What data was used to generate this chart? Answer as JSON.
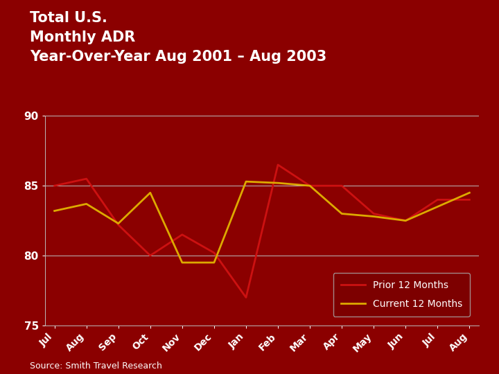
{
  "title": "Total U.S.\nMonthly ADR\nYear-Over-Year Aug 2001 – Aug 2003",
  "source": "Source: Smith Travel Research",
  "categories": [
    "Jul",
    "Aug",
    "Sep",
    "Oct",
    "Nov",
    "Dec",
    "Jan",
    "Feb",
    "Mar",
    "Apr",
    "May",
    "Jun",
    "Jul",
    "Aug"
  ],
  "prior_12_months": [
    85.0,
    85.5,
    82.2,
    80.0,
    81.5,
    80.2,
    77.0,
    86.5,
    85.0,
    85.0,
    83.0,
    82.5,
    84.0,
    84.0
  ],
  "current_12_months": [
    83.2,
    83.7,
    82.3,
    84.5,
    79.5,
    79.5,
    85.3,
    85.2,
    85.0,
    83.0,
    82.8,
    82.5,
    83.5,
    84.5
  ],
  "prior_color": "#CC1111",
  "current_color": "#DDAA00",
  "background_color": "#8B0000",
  "plot_bg_color": "#8B0000",
  "grid_color": "#BBBBBB",
  "text_color": "#FFFFFF",
  "ylim": [
    75,
    90
  ],
  "yticks": [
    75,
    80,
    85,
    90
  ],
  "legend_bg": "#7A0000",
  "legend_border": "#AAAAAA"
}
